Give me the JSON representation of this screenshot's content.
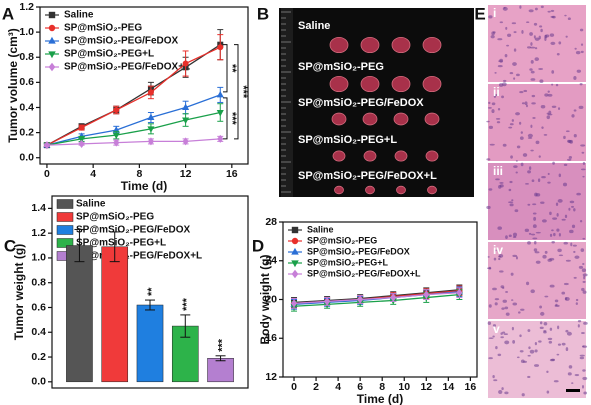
{
  "chart_data": [
    {
      "type": "line",
      "panel": "A",
      "xlabel": "Time (d)",
      "ylabel": "Tumor volume (cm³)",
      "legend": "upper left",
      "x": [
        0,
        3,
        6,
        9,
        12,
        15
      ],
      "xlim": [
        -0.6,
        17.4
      ],
      "xticks": [
        0,
        4,
        8,
        12,
        16
      ],
      "ylim": [
        -0.05,
        1.2
      ],
      "yticks": [
        {
          "value": 0,
          "label": "0.0"
        },
        0.2,
        0.4,
        0.6,
        0.8,
        {
          "value": 1,
          "label": "1.0"
        },
        1.2
      ],
      "series": [
        {
          "name": "Saline",
          "color": "#333333",
          "marker": "square",
          "values": [
            0.1,
            0.25,
            0.38,
            0.55,
            0.72,
            0.9
          ],
          "errors": [
            0.01,
            0.02,
            0.03,
            0.05,
            0.08,
            0.12
          ]
        },
        {
          "name": "SP@mSiO₂-PEG",
          "color": "#e8302b",
          "marker": "circle",
          "values": [
            0.1,
            0.24,
            0.38,
            0.52,
            0.75,
            0.88
          ],
          "errors": [
            0.01,
            0.02,
            0.03,
            0.05,
            0.1,
            0.1
          ]
        },
        {
          "name": "SP@mSiO₂-PEG/FeDOX",
          "color": "#2a6fd6",
          "marker": "triangle-up",
          "values": [
            0.1,
            0.17,
            0.22,
            0.32,
            0.4,
            0.5
          ],
          "errors": [
            0.01,
            0.02,
            0.03,
            0.04,
            0.05,
            0.06
          ]
        },
        {
          "name": "SP@mSiO₂-PEG+L",
          "color": "#1aa04a",
          "marker": "triangle-down",
          "values": [
            0.1,
            0.15,
            0.18,
            0.23,
            0.3,
            0.36
          ],
          "errors": [
            0.01,
            0.02,
            0.03,
            0.04,
            0.05,
            0.07
          ]
        },
        {
          "name": "SP@mSiO₂-PEG/FeDOX+L",
          "color": "#c77fd8",
          "marker": "diamond",
          "values": [
            0.1,
            0.11,
            0.12,
            0.13,
            0.13,
            0.15
          ],
          "errors": [
            0.01,
            0.01,
            0.02,
            0.02,
            0.02,
            0.02
          ]
        }
      ],
      "annotations": [
        "**",
        "***",
        "***"
      ]
    },
    {
      "type": "bar",
      "panel": "C",
      "ylabel": "Tumor weight (g)",
      "legend": "upper left",
      "categories": [
        null
      ],
      "ylim": [
        -0.05,
        1.5
      ],
      "yticks": [
        {
          "value": 0,
          "label": "0.0"
        },
        0.2,
        0.4,
        0.6,
        0.8,
        {
          "value": 1,
          "label": "1.0"
        },
        1.2,
        1.4
      ],
      "series": [
        {
          "name": "Saline",
          "color": "#555555",
          "values": [
            1.1
          ],
          "errors": [
            0.13
          ]
        },
        {
          "name": "SP@mSiO₂-PEG",
          "color": "#f03a3a",
          "values": [
            1.09
          ],
          "errors": [
            0.12
          ]
        },
        {
          "name": "SP@mSiO₂-PEG/FeDOX",
          "color": "#1f7fe0",
          "values": [
            0.62
          ],
          "errors": [
            0.04
          ]
        },
        {
          "name": "SP@mSiO₂-PEG+L",
          "color": "#2db34a",
          "values": [
            0.45
          ],
          "errors": [
            0.09
          ]
        },
        {
          "name": "SP@mSiO₂-PEG/FeDOX+L",
          "color": "#b47fd0",
          "values": [
            0.19
          ],
          "errors": [
            0.02
          ]
        }
      ],
      "annotations": [
        null,
        null,
        "**",
        "***",
        "***"
      ]
    },
    {
      "type": "line",
      "panel": "D",
      "xlabel": "Time (d)",
      "ylabel": "Body weight (g)",
      "legend": "upper left",
      "x": [
        0,
        3,
        6,
        9,
        12,
        15
      ],
      "xlim": [
        -1,
        16.6
      ],
      "xticks": [
        0,
        2,
        4,
        6,
        8,
        10,
        12,
        14,
        16
      ],
      "ylim": [
        12,
        28
      ],
      "yticks": [
        12,
        16,
        20,
        24,
        28
      ],
      "series": [
        {
          "name": "Saline",
          "color": "#333333",
          "marker": "square",
          "values": [
            19.7,
            19.9,
            20.1,
            20.4,
            20.7,
            21.0
          ],
          "errors": [
            0.5,
            0.4,
            0.4,
            0.4,
            0.5,
            0.5
          ]
        },
        {
          "name": "SP@mSiO₂-PEG",
          "color": "#e8302b",
          "marker": "circle",
          "values": [
            19.6,
            19.8,
            20.0,
            20.3,
            20.6,
            20.9
          ],
          "errors": [
            0.5,
            0.4,
            0.4,
            0.4,
            0.5,
            0.5
          ]
        },
        {
          "name": "SP@mSiO₂-PEG/FeDOX",
          "color": "#2a6fd6",
          "marker": "triangle-up",
          "values": [
            19.5,
            19.7,
            19.9,
            20.2,
            20.5,
            20.8
          ],
          "errors": [
            0.5,
            0.4,
            0.4,
            0.4,
            0.5,
            0.5
          ]
        },
        {
          "name": "SP@mSiO₂-PEG+L",
          "color": "#1aa04a",
          "marker": "triangle-down",
          "values": [
            19.3,
            19.5,
            19.7,
            19.9,
            20.2,
            20.5
          ],
          "errors": [
            0.5,
            0.4,
            0.4,
            0.4,
            0.5,
            0.5
          ]
        },
        {
          "name": "SP@mSiO₂-PEG/FeDOX+L",
          "color": "#c77fd8",
          "marker": "diamond",
          "values": [
            19.6,
            19.8,
            20.0,
            20.2,
            20.5,
            20.7
          ],
          "errors": [
            0.5,
            0.4,
            0.4,
            0.4,
            0.5,
            0.5
          ]
        }
      ]
    }
  ],
  "photo": {
    "panel": "B",
    "labels": [
      "Saline",
      "SP@mSiO₂-PEG",
      "SP@mSiO₂-PEG/FeDOX",
      "SP@mSiO₂-PEG+L",
      "SP@mSiO₂-PEG/FeDOX+L"
    ]
  },
  "histology": {
    "panel": "E",
    "labels": [
      "i",
      "ii",
      "iii",
      "iv",
      "v"
    ]
  }
}
